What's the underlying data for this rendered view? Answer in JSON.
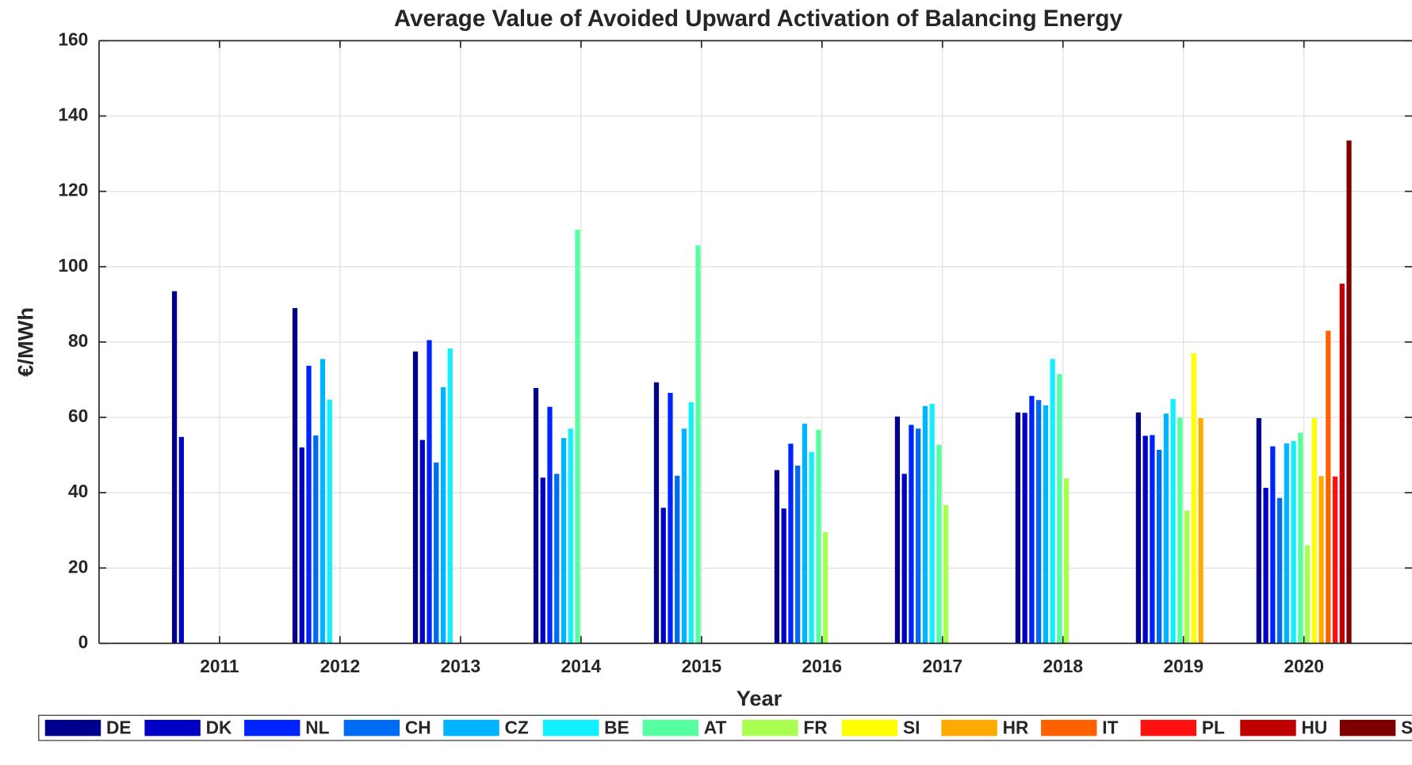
{
  "chart_data": {
    "type": "bar",
    "title": "Average Value of Avoided Upward Activation of Balancing Energy",
    "x_label": "Year",
    "y_label": "€/MWh",
    "categories": [
      "2011",
      "2012",
      "2013",
      "2014",
      "2015",
      "2016",
      "2017",
      "2018",
      "2019",
      "2020"
    ],
    "ylim": [
      0,
      160
    ],
    "yticks": [
      0,
      20,
      40,
      60,
      80,
      100,
      120,
      140,
      160
    ],
    "grid": true,
    "series": [
      {
        "name": "DE",
        "color": "#00008f",
        "values": [
          93.5,
          89,
          77.5,
          67.8,
          69.3,
          46,
          60.2,
          61.3,
          61.3,
          59.8
        ]
      },
      {
        "name": "DK",
        "color": "#0000c4",
        "values": [
          54.8,
          52,
          54,
          44,
          36,
          35.8,
          45,
          61.2,
          55.1,
          41.3
        ]
      },
      {
        "name": "NL",
        "color": "#0024ff",
        "values": [
          null,
          73.7,
          80.5,
          62.8,
          66.5,
          53,
          58,
          65.7,
          55.3,
          52.3
        ]
      },
      {
        "name": "CH",
        "color": "#006cf5",
        "values": [
          null,
          55.2,
          48,
          45,
          44.5,
          47.2,
          57,
          64.6,
          51.4,
          38.6
        ]
      },
      {
        "name": "CZ",
        "color": "#00b4ff",
        "values": [
          null,
          75.5,
          68,
          54.5,
          57,
          58.3,
          63,
          63.2,
          61,
          53.1
        ]
      },
      {
        "name": "BE",
        "color": "#10f0ff",
        "values": [
          null,
          64.7,
          78.3,
          57,
          64,
          50.8,
          63.6,
          75.5,
          64.9,
          53.7
        ]
      },
      {
        "name": "AT",
        "color": "#55ffa0",
        "values": [
          null,
          null,
          null,
          109.8,
          105.6,
          56.7,
          52.7,
          71.5,
          59.9,
          55.9
        ]
      },
      {
        "name": "FR",
        "color": "#a8ff50",
        "values": [
          null,
          null,
          null,
          null,
          null,
          29.5,
          36.7,
          43.8,
          35.2,
          26
        ]
      },
      {
        "name": "SI",
        "color": "#ffff00",
        "values": [
          null,
          null,
          null,
          null,
          null,
          null,
          null,
          null,
          77,
          59.8
        ]
      },
      {
        "name": "HR",
        "color": "#ffaa00",
        "values": [
          null,
          null,
          null,
          null,
          null,
          null,
          null,
          null,
          59.8,
          44.4
        ]
      },
      {
        "name": "IT",
        "color": "#ff6000",
        "values": [
          null,
          null,
          null,
          null,
          null,
          null,
          null,
          null,
          null,
          83
        ]
      },
      {
        "name": "PL",
        "color": "#ff1010",
        "values": [
          null,
          null,
          null,
          null,
          null,
          null,
          null,
          null,
          null,
          44.3
        ]
      },
      {
        "name": "HU",
        "color": "#c00000",
        "values": [
          null,
          null,
          null,
          null,
          null,
          null,
          null,
          null,
          null,
          95.5
        ]
      },
      {
        "name": "SK",
        "color": "#800000",
        "values": [
          null,
          null,
          null,
          null,
          null,
          null,
          null,
          null,
          null,
          133.5
        ]
      }
    ]
  }
}
